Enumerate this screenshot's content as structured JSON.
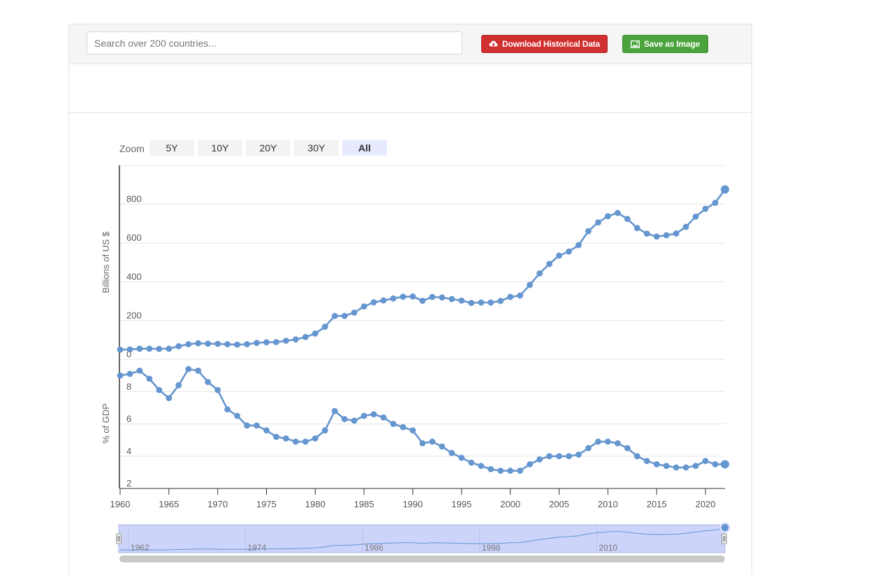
{
  "toolbar": {
    "search_placeholder": "Search over 200 countries...",
    "download_label": "Download Historical Data",
    "save_label": "Save as Image"
  },
  "zoom": {
    "label": "Zoom",
    "buttons": [
      "5Y",
      "10Y",
      "20Y",
      "30Y",
      "All"
    ],
    "selected": "All"
  },
  "colors": {
    "series": "#6596cf",
    "zoom_selected": "#e6e9ff",
    "zoom_default": "#f3f3f3",
    "navigator_mask": "#c8cffa"
  },
  "chart_data": [
    {
      "type": "line",
      "ylabel": "Billions of US $",
      "ylim": [
        0,
        1000
      ],
      "yticks": [
        0,
        200,
        400,
        600,
        800
      ],
      "x": [
        1960,
        1961,
        1962,
        1963,
        1964,
        1965,
        1966,
        1967,
        1968,
        1969,
        1970,
        1971,
        1972,
        1973,
        1974,
        1975,
        1976,
        1977,
        1978,
        1979,
        1980,
        1981,
        1982,
        1983,
        1984,
        1985,
        1986,
        1987,
        1988,
        1989,
        1990,
        1991,
        1992,
        1993,
        1994,
        1995,
        1996,
        1997,
        1998,
        1999,
        2000,
        2001,
        2002,
        2003,
        2004,
        2005,
        2006,
        2007,
        2008,
        2009,
        2010,
        2011,
        2012,
        2013,
        2014,
        2015,
        2016,
        2017,
        2018,
        2019,
        2020,
        2021,
        2022
      ],
      "values": [
        50,
        51,
        55,
        55,
        54,
        55,
        68,
        78,
        83,
        81,
        80,
        78,
        76,
        78,
        85,
        88,
        89,
        96,
        103,
        115,
        133,
        168,
        224,
        224,
        241,
        273,
        294,
        304,
        314,
        323,
        324,
        302,
        322,
        319,
        311,
        303,
        291,
        293,
        293,
        301,
        322,
        329,
        384,
        443,
        492,
        535,
        556,
        589,
        661,
        706,
        738,
        755,
        724,
        677,
        648,
        633,
        640,
        649,
        683,
        736,
        776,
        807,
        876
      ]
    },
    {
      "type": "line",
      "ylabel": "% of GDP",
      "ylim": [
        2,
        10
      ],
      "yticks": [
        2,
        4,
        6,
        8
      ],
      "x": [
        1960,
        1961,
        1962,
        1963,
        1964,
        1965,
        1966,
        1967,
        1968,
        1969,
        1970,
        1971,
        1972,
        1973,
        1974,
        1975,
        1976,
        1977,
        1978,
        1979,
        1980,
        1981,
        1982,
        1983,
        1984,
        1985,
        1986,
        1987,
        1988,
        1989,
        1990,
        1991,
        1992,
        1993,
        1994,
        1995,
        1996,
        1997,
        1998,
        1999,
        2000,
        2001,
        2002,
        2003,
        2004,
        2005,
        2006,
        2007,
        2008,
        2009,
        2010,
        2011,
        2012,
        2013,
        2014,
        2015,
        2016,
        2017,
        2018,
        2019,
        2020,
        2021,
        2022
      ],
      "values": [
        9.0,
        9.1,
        9.3,
        8.8,
        8.1,
        7.6,
        8.4,
        9.4,
        9.3,
        8.6,
        8.1,
        6.9,
        6.5,
        5.9,
        5.9,
        5.6,
        5.2,
        5.1,
        4.9,
        4.9,
        5.1,
        5.6,
        6.8,
        6.3,
        6.2,
        6.5,
        6.6,
        6.4,
        6.0,
        5.8,
        5.6,
        4.8,
        4.9,
        4.6,
        4.2,
        3.9,
        3.6,
        3.4,
        3.2,
        3.1,
        3.1,
        3.1,
        3.5,
        3.8,
        4.0,
        4.0,
        4.0,
        4.1,
        4.5,
        4.9,
        4.9,
        4.8,
        4.5,
        4.0,
        3.7,
        3.5,
        3.4,
        3.3,
        3.3,
        3.4,
        3.7,
        3.5,
        3.5
      ]
    }
  ],
  "xaxis": {
    "ticks": [
      1960,
      1965,
      1970,
      1975,
      1980,
      1985,
      1990,
      1995,
      2000,
      2005,
      2010,
      2015,
      2020
    ],
    "range": [
      1960,
      2022
    ]
  },
  "navigator": {
    "labels": [
      "1962",
      "1974",
      "1986",
      "1998",
      "2010"
    ]
  }
}
